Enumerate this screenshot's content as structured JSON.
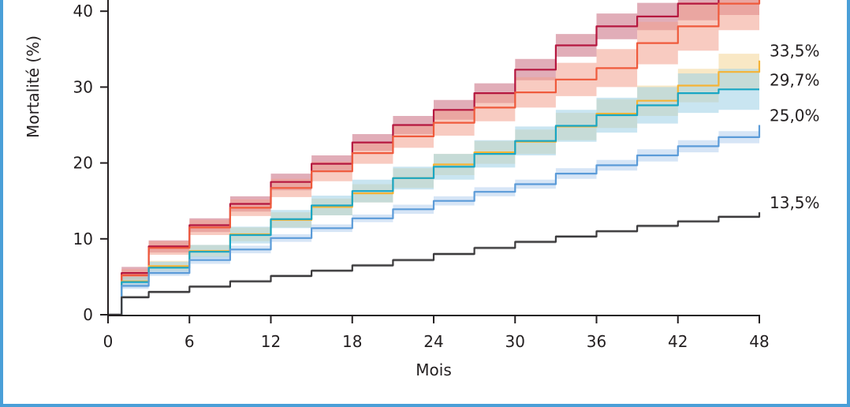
{
  "chart_data": {
    "type": "line",
    "title": "",
    "xlabel": "Mois",
    "ylabel": "Mortalité (%)",
    "xlim": [
      0,
      48
    ],
    "ylim": [
      0,
      42
    ],
    "x_ticks": [
      "0",
      "6",
      "12",
      "18",
      "24",
      "30",
      "36",
      "42",
      "48"
    ],
    "y_ticks": [
      "0",
      "10",
      "20",
      "30",
      "40"
    ],
    "grid": false,
    "legend": "none",
    "x": [
      0,
      1,
      3,
      6,
      9,
      12,
      15,
      18,
      21,
      24,
      27,
      30,
      33,
      36,
      39,
      42,
      45,
      48
    ],
    "series": [
      {
        "color": "#b5173f",
        "band_color": "#c86a7e",
        "values": [
          0,
          5.5,
          9.0,
          11.8,
          14.6,
          17.5,
          19.9,
          22.7,
          25.0,
          27.0,
          29.2,
          32.3,
          35.5,
          38.0,
          39.3,
          41.0,
          42.0,
          42.0
        ],
        "ci_lower": [
          0,
          4.7,
          8.2,
          10.9,
          13.6,
          16.4,
          18.8,
          21.6,
          23.8,
          25.7,
          27.9,
          30.9,
          34.0,
          36.3,
          37.5,
          38.8,
          39.5,
          39.5
        ],
        "ci_upper": [
          0,
          6.3,
          9.8,
          12.7,
          15.6,
          18.6,
          21.0,
          23.8,
          26.2,
          28.3,
          30.5,
          33.7,
          37.0,
          39.7,
          41.1,
          42.0,
          42.0,
          42.0
        ]
      },
      {
        "color": "#ef5a3c",
        "band_color": "#f2a08e",
        "values": [
          0,
          5.2,
          8.8,
          11.5,
          14.1,
          16.7,
          18.9,
          21.3,
          23.5,
          25.3,
          27.3,
          29.3,
          31.0,
          32.5,
          35.8,
          38.0,
          41.0,
          42.0
        ],
        "ci_lower": [
          0,
          4.4,
          7.9,
          10.5,
          13.0,
          15.5,
          17.6,
          19.9,
          22.0,
          23.6,
          25.5,
          27.3,
          28.8,
          30.0,
          33.0,
          34.8,
          37.5,
          38.5
        ],
        "ci_upper": [
          0,
          6.0,
          9.7,
          12.5,
          15.2,
          17.9,
          20.2,
          22.7,
          25.0,
          27.0,
          29.1,
          31.3,
          33.2,
          35.0,
          38.6,
          41.2,
          42.0,
          42.0
        ]
      },
      {
        "color": "#f5b335",
        "band_color": "#f4d596",
        "values": [
          0,
          4.4,
          6.4,
          8.4,
          10.6,
          12.5,
          14.2,
          16.0,
          18.0,
          19.8,
          21.4,
          22.8,
          24.8,
          26.5,
          28.2,
          30.2,
          32.0,
          33.5
        ],
        "ci_lower": [
          0,
          3.8,
          5.7,
          7.6,
          9.7,
          11.5,
          13.1,
          14.8,
          16.7,
          18.4,
          19.9,
          21.2,
          23.0,
          24.6,
          26.2,
          28.0,
          29.6,
          31.0
        ],
        "ci_upper": [
          0,
          5.0,
          7.1,
          9.2,
          11.5,
          13.5,
          15.3,
          17.2,
          19.3,
          21.2,
          22.9,
          24.4,
          26.6,
          28.4,
          30.2,
          32.4,
          34.4,
          36.0
        ]
      },
      {
        "color": "#18a6c4",
        "band_color": "#9cd0e6",
        "values": [
          0,
          4.3,
          6.2,
          8.3,
          10.5,
          12.6,
          14.4,
          16.3,
          18.0,
          19.5,
          21.2,
          22.9,
          24.9,
          26.3,
          27.6,
          29.2,
          29.7,
          29.7
        ],
        "ci_lower": [
          0,
          3.6,
          5.4,
          7.4,
          9.4,
          11.4,
          13.1,
          14.8,
          16.5,
          17.8,
          19.4,
          21.0,
          22.8,
          24.0,
          25.2,
          26.6,
          27.0,
          27.0
        ],
        "ci_upper": [
          0,
          5.0,
          7.0,
          9.2,
          11.6,
          13.8,
          15.7,
          17.8,
          19.5,
          21.2,
          23.0,
          24.8,
          27.0,
          28.6,
          30.0,
          31.8,
          32.4,
          32.4
        ]
      },
      {
        "color": "#5b9bd8",
        "band_color": "#b4d0ef",
        "values": [
          0,
          3.8,
          5.5,
          7.2,
          8.6,
          10.1,
          11.4,
          12.7,
          13.9,
          15.0,
          16.2,
          17.2,
          18.6,
          19.7,
          21.0,
          22.2,
          23.4,
          25.0
        ],
        "ci_lower": [
          0,
          3.4,
          5.1,
          6.7,
          8.1,
          9.6,
          10.9,
          12.2,
          13.3,
          14.4,
          15.6,
          16.6,
          17.9,
          19.0,
          20.2,
          21.4,
          22.6,
          24.0
        ],
        "ci_upper": [
          0,
          4.2,
          5.9,
          7.7,
          9.1,
          10.6,
          11.9,
          13.2,
          14.5,
          15.6,
          16.8,
          17.8,
          19.3,
          20.4,
          21.8,
          23.0,
          24.2,
          26.0
        ]
      },
      {
        "color": "#3c3b3d",
        "band_color": "#a8a8a8",
        "values": [
          0,
          2.3,
          3.0,
          3.7,
          4.4,
          5.1,
          5.8,
          6.5,
          7.2,
          8.0,
          8.8,
          9.6,
          10.3,
          11.0,
          11.7,
          12.3,
          12.9,
          13.5
        ],
        "ci_lower": [
          0,
          2.1,
          2.8,
          3.5,
          4.2,
          4.9,
          5.6,
          6.3,
          7.0,
          7.8,
          8.6,
          9.4,
          10.1,
          10.8,
          11.5,
          12.1,
          12.7,
          13.3
        ],
        "ci_upper": [
          0,
          2.5,
          3.2,
          3.9,
          4.6,
          5.3,
          6.0,
          6.7,
          7.4,
          8.2,
          9.0,
          9.8,
          10.5,
          11.2,
          11.9,
          12.5,
          13.1,
          13.7
        ]
      }
    ],
    "end_labels": [
      {
        "text": "33,5%",
        "y": 33.5
      },
      {
        "text": "29,7%",
        "y": 29.7
      },
      {
        "text": "25,0%",
        "y": 25.0
      },
      {
        "text": "13,5%",
        "y": 13.5
      }
    ]
  }
}
